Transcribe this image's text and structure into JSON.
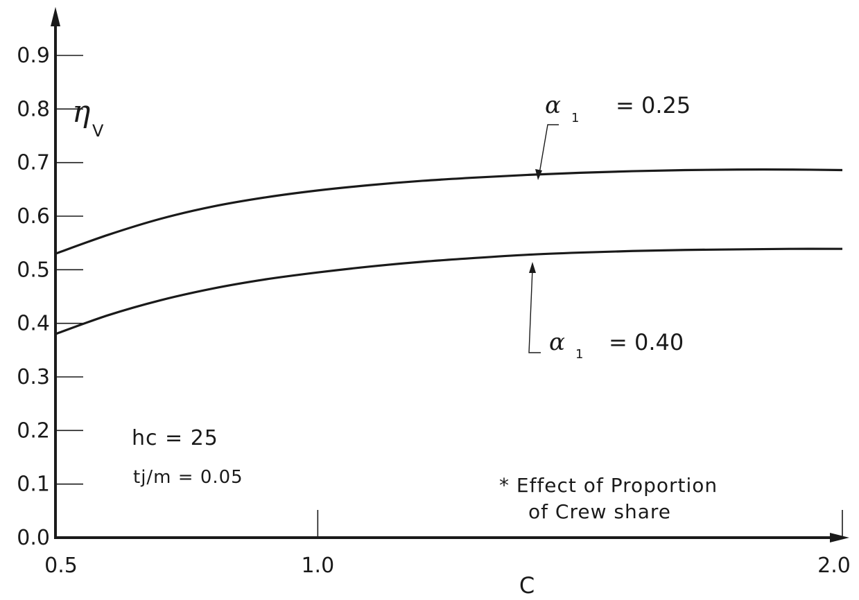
{
  "chart_data": {
    "type": "line",
    "title": "",
    "xlabel": "C",
    "ylabel_symbol": "η",
    "ylabel_subscript": "V",
    "xlim": [
      0.5,
      2.0
    ],
    "ylim": [
      0.0,
      0.9
    ],
    "x_ticks": [
      {
        "value": 0.5,
        "label": "0.5"
      },
      {
        "value": 1.0,
        "label": "1.0"
      },
      {
        "value": 2.0,
        "label": "2.0"
      }
    ],
    "y_ticks": [
      {
        "value": 0.0,
        "label": "0.0"
      },
      {
        "value": 0.1,
        "label": "0.1"
      },
      {
        "value": 0.2,
        "label": "0.2"
      },
      {
        "value": 0.3,
        "label": "0.3"
      },
      {
        "value": 0.4,
        "label": "0.4"
      },
      {
        "value": 0.5,
        "label": "0.5"
      },
      {
        "value": 0.6,
        "label": "0.6"
      },
      {
        "value": 0.7,
        "label": "0.7"
      },
      {
        "value": 0.8,
        "label": "0.8"
      },
      {
        "value": 0.9,
        "label": "0.9"
      }
    ],
    "grid": false,
    "series": [
      {
        "name": "α1 = 0.25",
        "label_symbol": "α",
        "label_subscript": "1",
        "label_value": "= 0.25",
        "arrow_x": 1.35,
        "x": [
          0.5,
          0.6,
          0.7,
          0.8,
          0.9,
          1.0,
          1.1,
          1.2,
          1.3,
          1.4,
          1.5,
          1.6,
          1.7,
          1.8,
          1.9,
          2.0
        ],
        "y": [
          0.53,
          0.565,
          0.595,
          0.618,
          0.635,
          0.648,
          0.658,
          0.666,
          0.672,
          0.677,
          0.681,
          0.684,
          0.686,
          0.687,
          0.687,
          0.686
        ]
      },
      {
        "name": "α1 = 0.40",
        "label_symbol": "α",
        "label_subscript": "1",
        "label_value": "= 0.40",
        "arrow_x": 1.35,
        "x": [
          0.5,
          0.6,
          0.7,
          0.8,
          0.9,
          1.0,
          1.1,
          1.2,
          1.3,
          1.4,
          1.5,
          1.6,
          1.7,
          1.8,
          1.9,
          2.0
        ],
        "y": [
          0.38,
          0.415,
          0.443,
          0.465,
          0.482,
          0.495,
          0.506,
          0.515,
          0.522,
          0.528,
          0.532,
          0.535,
          0.537,
          0.538,
          0.539,
          0.539
        ]
      }
    ],
    "annotations": {
      "param1": "hc  =  25",
      "param2": "tj/m = 0.05",
      "note_line1": "* Effect  of  Proportion",
      "note_line2": "of  Crew  share"
    }
  }
}
